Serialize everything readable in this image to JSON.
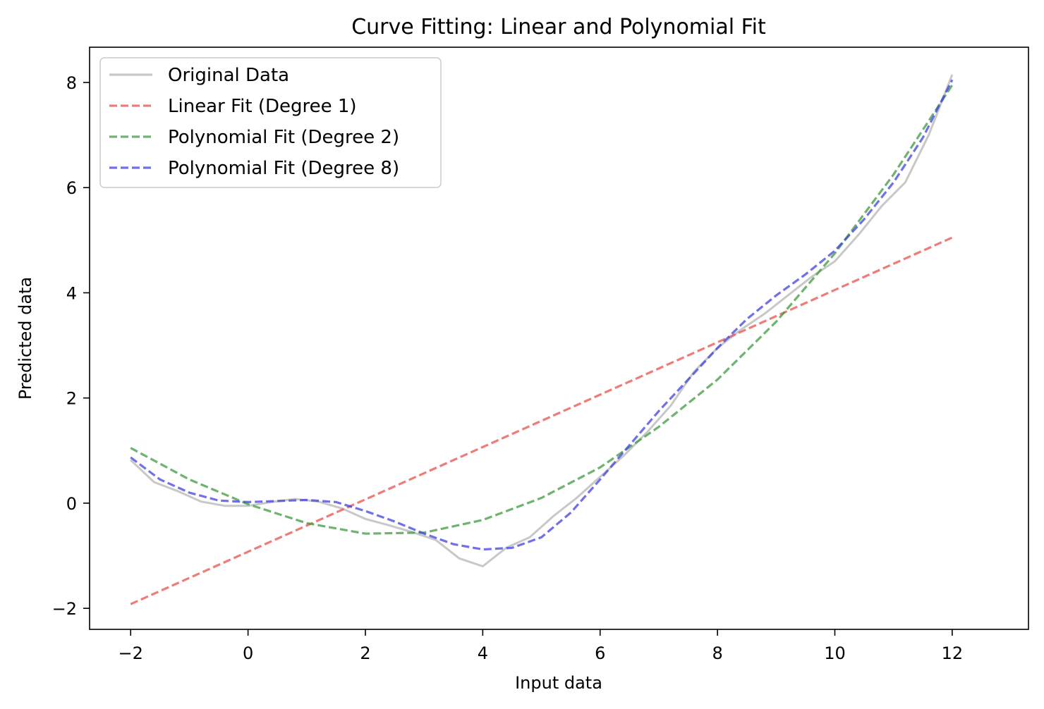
{
  "chart_data": {
    "type": "line",
    "title": "Curve Fitting: Linear and Polynomial Fit",
    "xlabel": "Input data",
    "ylabel": "Predicted data",
    "xlim": [
      -2.7,
      13.3
    ],
    "ylim": [
      -2.4,
      8.67
    ],
    "xticks": [
      -2,
      0,
      2,
      4,
      6,
      8,
      10,
      12
    ],
    "xtick_labels": [
      "−2",
      "0",
      "2",
      "4",
      "6",
      "8",
      "10",
      "12"
    ],
    "yticks": [
      -2,
      0,
      2,
      4,
      6,
      8
    ],
    "ytick_labels": [
      "−2",
      "0",
      "2",
      "4",
      "6",
      "8"
    ],
    "grid": false,
    "legend_position": "upper-left",
    "series": [
      {
        "name": "Original Data",
        "color": "#b0b0b0",
        "style": "solid",
        "x": [
          -2.0,
          -1.6,
          -1.2,
          -0.8,
          -0.4,
          0.0,
          0.4,
          0.8,
          1.2,
          1.6,
          2.0,
          2.4,
          2.8,
          3.2,
          3.6,
          4.0,
          4.4,
          4.8,
          5.2,
          5.6,
          6.0,
          6.4,
          6.8,
          7.2,
          7.6,
          8.0,
          8.4,
          8.8,
          9.2,
          9.6,
          10.0,
          10.4,
          10.8,
          11.2,
          11.6,
          12.0
        ],
        "values": [
          0.82,
          0.4,
          0.23,
          0.03,
          -0.05,
          -0.05,
          0.02,
          0.08,
          0.03,
          -0.1,
          -0.3,
          -0.42,
          -0.55,
          -0.7,
          -1.05,
          -1.2,
          -0.85,
          -0.65,
          -0.25,
          0.1,
          0.5,
          0.9,
          1.35,
          1.85,
          2.5,
          2.95,
          3.3,
          3.6,
          3.95,
          4.3,
          4.6,
          5.1,
          5.65,
          6.1,
          7.0,
          8.15
        ]
      },
      {
        "name": "Linear Fit (Degree 1)",
        "color": "#e8524a",
        "style": "dashed",
        "x": [
          -2,
          12
        ],
        "values": [
          -1.92,
          5.05
        ]
      },
      {
        "name": "Polynomial Fit (Degree 2)",
        "color": "#3d9a3d",
        "style": "dashed",
        "x": [
          -2.0,
          -1.0,
          0.0,
          1.0,
          2.0,
          3.0,
          4.0,
          5.0,
          6.0,
          7.0,
          8.0,
          9.0,
          10.0,
          11.0,
          12.0
        ],
        "values": [
          1.05,
          0.45,
          -0.02,
          -0.38,
          -0.58,
          -0.56,
          -0.32,
          0.1,
          0.68,
          1.45,
          2.35,
          3.45,
          4.75,
          6.25,
          7.95
        ]
      },
      {
        "name": "Polynomial Fit (Degree 8)",
        "color": "#4040e0",
        "style": "dashed",
        "x": [
          -2.0,
          -1.5,
          -1.0,
          -0.5,
          0.0,
          0.5,
          1.0,
          1.5,
          2.0,
          2.5,
          3.0,
          3.5,
          4.0,
          4.5,
          5.0,
          5.5,
          6.0,
          6.5,
          7.0,
          7.5,
          8.0,
          8.5,
          9.0,
          9.5,
          10.0,
          10.5,
          11.0,
          11.5,
          12.0
        ],
        "values": [
          0.87,
          0.45,
          0.2,
          0.05,
          0.02,
          0.04,
          0.06,
          0.02,
          -0.15,
          -0.35,
          -0.58,
          -0.78,
          -0.88,
          -0.85,
          -0.65,
          -0.18,
          0.45,
          1.1,
          1.75,
          2.35,
          2.95,
          3.5,
          3.95,
          4.35,
          4.8,
          5.4,
          6.1,
          6.95,
          8.05
        ]
      }
    ]
  }
}
